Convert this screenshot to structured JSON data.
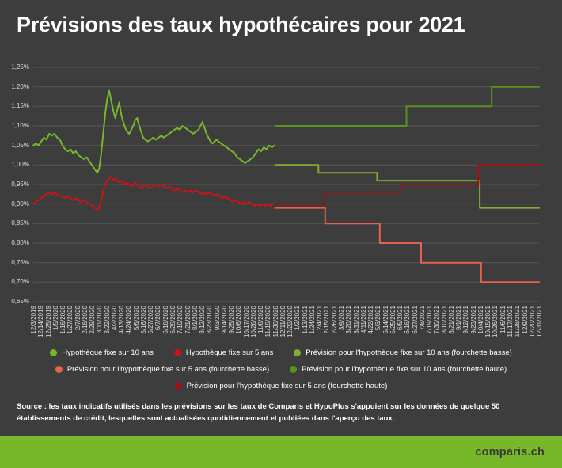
{
  "title": "Prévisions des taux hypothécaires pour 2021",
  "source_text": "Source : les taux indicatifs utilisés dans les prévisions sur les taux de Comparis et HypoPlus s'appuient sur les données de quelque 50 établissements de crédit, lesquelles sont actualisées quotidiennement et publiées dans l'aperçu des taux.",
  "footer": {
    "brand": "comparis.ch",
    "bar_color": "#76b82a"
  },
  "colors": {
    "background": "#3d3d3d",
    "gridline": "#575757",
    "text": "#ffffff",
    "axis_text": "#dcdcdc",
    "footer_green": "#76b82a"
  },
  "chart_data": {
    "type": "line",
    "title": "Prévisions des taux hypothécaires pour 2021",
    "xlabel": "",
    "ylabel": "",
    "ylim": [
      0.65,
      1.25
    ],
    "ytick_step": 0.05,
    "grid": true,
    "legend_position": "bottom",
    "x_unit": "days since 12/3/2019, ticks every 11 days",
    "x_range_days": [
      0,
      759
    ],
    "y_tick_labels": [
      "1,25%",
      "1,20%",
      "1,15%",
      "1,10%",
      "1,05%",
      "1,00%",
      "0,95%",
      "0,90%",
      "0,85%",
      "0,80%",
      "0,75%",
      "0,70%",
      "0,65%"
    ],
    "x_tick_labels": [
      "12/3/2019",
      "12/14/2019",
      "12/25/2019",
      "1/5/2020",
      "1/16/2020",
      "1/27/2020",
      "2/7/2020",
      "2/18/2020",
      "2/29/2020",
      "3/11/2020",
      "3/22/2020",
      "4/2/2020",
      "4/13/2020",
      "4/24/2020",
      "5/5/2020",
      "5/16/2020",
      "5/27/2020",
      "6/7/2020",
      "6/18/2020",
      "6/29/2020",
      "7/10/2020",
      "7/21/2020",
      "8/1/2020",
      "8/12/2020",
      "8/23/2020",
      "9/3/2020",
      "9/14/2020",
      "9/25/2020",
      "10/6/2020",
      "10/17/2020",
      "10/28/2020",
      "11/8/2020",
      "11/19/2020",
      "11/30/2020",
      "12/11/2020",
      "12/22/2020",
      "1/2/2021",
      "1/13/2021",
      "1/24/2021",
      "2/4/2021",
      "2/15/2021",
      "2/26/2021",
      "3/9/2021",
      "3/20/2021",
      "3/31/2021",
      "4/11/2021",
      "4/22/2021",
      "5/3/2021",
      "5/14/2021",
      "5/25/2021",
      "6/5/2021",
      "6/16/2021",
      "6/27/2021",
      "7/8/2021",
      "7/19/2021",
      "7/30/2021",
      "8/10/2021",
      "8/21/2021",
      "9/1/2021",
      "9/12/2021",
      "9/23/2021",
      "10/4/2021",
      "10/15/2021",
      "10/26/2021",
      "11/6/2021",
      "11/17/2021",
      "11/28/2021",
      "12/9/2021",
      "12/20/2021",
      "12/31/2021"
    ],
    "series": [
      {
        "name": "Hypothèque fixe sur 10 ans",
        "color": "#76b82a",
        "kind": "historical",
        "points": [
          [
            0,
            1.05
          ],
          [
            4,
            1.055
          ],
          [
            8,
            1.05
          ],
          [
            12,
            1.06
          ],
          [
            16,
            1.07
          ],
          [
            20,
            1.065
          ],
          [
            24,
            1.08
          ],
          [
            28,
            1.075
          ],
          [
            32,
            1.08
          ],
          [
            36,
            1.07
          ],
          [
            40,
            1.065
          ],
          [
            44,
            1.05
          ],
          [
            48,
            1.04
          ],
          [
            52,
            1.035
          ],
          [
            56,
            1.04
          ],
          [
            60,
            1.03
          ],
          [
            64,
            1.035
          ],
          [
            68,
            1.025
          ],
          [
            72,
            1.02
          ],
          [
            76,
            1.015
          ],
          [
            80,
            1.02
          ],
          [
            84,
            1.01
          ],
          [
            88,
            1.0
          ],
          [
            92,
            0.99
          ],
          [
            96,
            0.98
          ],
          [
            99,
            0.99
          ],
          [
            102,
            1.03
          ],
          [
            105,
            1.08
          ],
          [
            108,
            1.13
          ],
          [
            111,
            1.17
          ],
          [
            114,
            1.19
          ],
          [
            117,
            1.165
          ],
          [
            120,
            1.14
          ],
          [
            123,
            1.12
          ],
          [
            126,
            1.14
          ],
          [
            129,
            1.16
          ],
          [
            132,
            1.13
          ],
          [
            135,
            1.11
          ],
          [
            138,
            1.095
          ],
          [
            141,
            1.085
          ],
          [
            144,
            1.08
          ],
          [
            147,
            1.09
          ],
          [
            150,
            1.1
          ],
          [
            153,
            1.115
          ],
          [
            156,
            1.12
          ],
          [
            159,
            1.1
          ],
          [
            162,
            1.085
          ],
          [
            165,
            1.07
          ],
          [
            168,
            1.065
          ],
          [
            172,
            1.06
          ],
          [
            176,
            1.065
          ],
          [
            180,
            1.07
          ],
          [
            184,
            1.065
          ],
          [
            188,
            1.07
          ],
          [
            192,
            1.075
          ],
          [
            196,
            1.07
          ],
          [
            200,
            1.075
          ],
          [
            204,
            1.08
          ],
          [
            208,
            1.085
          ],
          [
            212,
            1.09
          ],
          [
            216,
            1.095
          ],
          [
            220,
            1.09
          ],
          [
            224,
            1.1
          ],
          [
            228,
            1.095
          ],
          [
            232,
            1.09
          ],
          [
            236,
            1.085
          ],
          [
            240,
            1.08
          ],
          [
            244,
            1.085
          ],
          [
            248,
            1.09
          ],
          [
            251,
            1.1
          ],
          [
            254,
            1.11
          ],
          [
            257,
            1.095
          ],
          [
            260,
            1.08
          ],
          [
            263,
            1.07
          ],
          [
            266,
            1.06
          ],
          [
            269,
            1.055
          ],
          [
            272,
            1.06
          ],
          [
            275,
            1.065
          ],
          [
            278,
            1.06
          ],
          [
            282,
            1.055
          ],
          [
            286,
            1.05
          ],
          [
            290,
            1.045
          ],
          [
            294,
            1.04
          ],
          [
            298,
            1.035
          ],
          [
            302,
            1.03
          ],
          [
            306,
            1.02
          ],
          [
            310,
            1.015
          ],
          [
            314,
            1.01
          ],
          [
            318,
            1.005
          ],
          [
            322,
            1.01
          ],
          [
            326,
            1.015
          ],
          [
            330,
            1.02
          ],
          [
            334,
            1.03
          ],
          [
            338,
            1.04
          ],
          [
            342,
            1.035
          ],
          [
            346,
            1.045
          ],
          [
            350,
            1.04
          ],
          [
            354,
            1.05
          ],
          [
            358,
            1.045
          ],
          [
            362,
            1.05
          ]
        ]
      },
      {
        "name": "Hypothèque fixe sur 5 ans",
        "color": "#cc1219",
        "kind": "historical",
        "points": [
          [
            0,
            0.9
          ],
          [
            4,
            0.905
          ],
          [
            8,
            0.91
          ],
          [
            12,
            0.915
          ],
          [
            16,
            0.92
          ],
          [
            20,
            0.925
          ],
          [
            24,
            0.93
          ],
          [
            28,
            0.925
          ],
          [
            32,
            0.93
          ],
          [
            36,
            0.925
          ],
          [
            40,
            0.92
          ],
          [
            44,
            0.92
          ],
          [
            48,
            0.915
          ],
          [
            52,
            0.92
          ],
          [
            56,
            0.915
          ],
          [
            60,
            0.91
          ],
          [
            64,
            0.915
          ],
          [
            68,
            0.91
          ],
          [
            72,
            0.905
          ],
          [
            76,
            0.91
          ],
          [
            80,
            0.905
          ],
          [
            84,
            0.9
          ],
          [
            88,
            0.895
          ],
          [
            92,
            0.89
          ],
          [
            96,
            0.885
          ],
          [
            99,
            0.89
          ],
          [
            102,
            0.91
          ],
          [
            105,
            0.93
          ],
          [
            108,
            0.95
          ],
          [
            111,
            0.96
          ],
          [
            114,
            0.965
          ],
          [
            117,
            0.97
          ],
          [
            120,
            0.96
          ],
          [
            123,
            0.965
          ],
          [
            126,
            0.96
          ],
          [
            129,
            0.955
          ],
          [
            132,
            0.96
          ],
          [
            135,
            0.955
          ],
          [
            138,
            0.95
          ],
          [
            141,
            0.955
          ],
          [
            144,
            0.95
          ],
          [
            147,
            0.945
          ],
          [
            150,
            0.95
          ],
          [
            153,
            0.955
          ],
          [
            156,
            0.95
          ],
          [
            159,
            0.945
          ],
          [
            162,
            0.94
          ],
          [
            165,
            0.945
          ],
          [
            168,
            0.95
          ],
          [
            172,
            0.945
          ],
          [
            176,
            0.94
          ],
          [
            180,
            0.945
          ],
          [
            184,
            0.95
          ],
          [
            188,
            0.945
          ],
          [
            192,
            0.95
          ],
          [
            196,
            0.945
          ],
          [
            200,
            0.94
          ],
          [
            204,
            0.945
          ],
          [
            208,
            0.94
          ],
          [
            212,
            0.935
          ],
          [
            216,
            0.94
          ],
          [
            220,
            0.935
          ],
          [
            224,
            0.93
          ],
          [
            228,
            0.935
          ],
          [
            232,
            0.93
          ],
          [
            236,
            0.935
          ],
          [
            240,
            0.93
          ],
          [
            244,
            0.935
          ],
          [
            248,
            0.93
          ],
          [
            252,
            0.925
          ],
          [
            256,
            0.93
          ],
          [
            260,
            0.925
          ],
          [
            264,
            0.93
          ],
          [
            268,
            0.925
          ],
          [
            272,
            0.92
          ],
          [
            276,
            0.925
          ],
          [
            280,
            0.92
          ],
          [
            284,
            0.915
          ],
          [
            288,
            0.92
          ],
          [
            292,
            0.915
          ],
          [
            296,
            0.91
          ],
          [
            300,
            0.905
          ],
          [
            304,
            0.91
          ],
          [
            308,
            0.905
          ],
          [
            312,
            0.9
          ],
          [
            316,
            0.905
          ],
          [
            320,
            0.9
          ],
          [
            324,
            0.905
          ],
          [
            328,
            0.9
          ],
          [
            332,
            0.895
          ],
          [
            336,
            0.9
          ],
          [
            340,
            0.895
          ],
          [
            344,
            0.9
          ],
          [
            348,
            0.895
          ],
          [
            352,
            0.9
          ],
          [
            356,
            0.895
          ],
          [
            360,
            0.9
          ]
        ]
      },
      {
        "name": "Prévision pour l'hypothèque fixe sur 10 ans (fourchette basse)",
        "color": "#7fae33",
        "kind": "forecast",
        "points": [
          [
            363,
            1.0
          ],
          [
            428,
            1.0
          ],
          [
            428,
            0.98
          ],
          [
            516,
            0.98
          ],
          [
            516,
            0.96
          ],
          [
            670,
            0.96
          ],
          [
            670,
            0.89
          ],
          [
            759,
            0.89
          ]
        ]
      },
      {
        "name": "Prévision pour l'hypothèque fixe sur 5 ans (fourchette basse)",
        "color": "#e8614d",
        "kind": "forecast",
        "points": [
          [
            363,
            0.89
          ],
          [
            438,
            0.89
          ],
          [
            438,
            0.85
          ],
          [
            520,
            0.85
          ],
          [
            520,
            0.8
          ],
          [
            582,
            0.8
          ],
          [
            582,
            0.75
          ],
          [
            672,
            0.75
          ],
          [
            672,
            0.7
          ],
          [
            759,
            0.7
          ]
        ]
      },
      {
        "name": "Prévision pour l'hypothèque fixe sur 10 ans (fourchette haute)",
        "color": "#57941f",
        "kind": "forecast",
        "points": [
          [
            363,
            1.1
          ],
          [
            560,
            1.1
          ],
          [
            560,
            1.15
          ],
          [
            688,
            1.15
          ],
          [
            688,
            1.2
          ],
          [
            759,
            1.2
          ]
        ]
      },
      {
        "name": "Prévision pour l'hypothèque fixe sur 5 ans (fourchette haute)",
        "color": "#9e1215",
        "kind": "forecast",
        "points": [
          [
            363,
            0.9
          ],
          [
            438,
            0.9
          ],
          [
            438,
            0.93
          ],
          [
            552,
            0.93
          ],
          [
            552,
            0.95
          ],
          [
            668,
            0.95
          ],
          [
            668,
            1.0
          ],
          [
            759,
            1.0
          ]
        ]
      }
    ]
  }
}
